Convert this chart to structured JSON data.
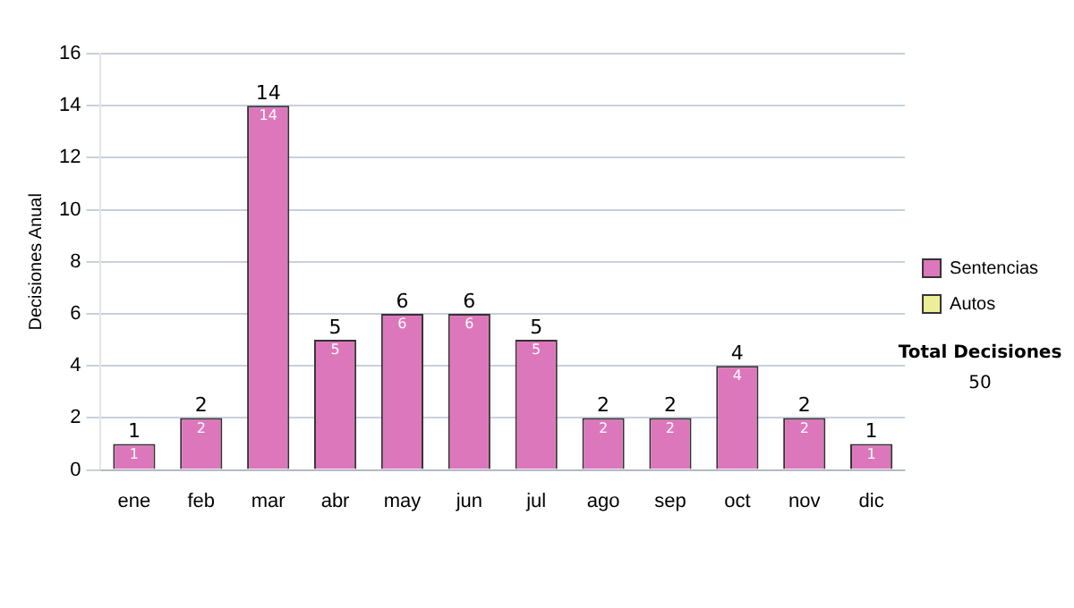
{
  "chart_data": {
    "type": "bar",
    "ylabel": "Decisiones Anual",
    "categories": [
      "ene",
      "feb",
      "mar",
      "abr",
      "may",
      "jun",
      "jul",
      "ago",
      "sep",
      "oct",
      "nov",
      "dic"
    ],
    "series": [
      {
        "name": "Sentencias",
        "color": "#dd77bb",
        "values": [
          1,
          2,
          14,
          5,
          6,
          6,
          5,
          2,
          2,
          4,
          2,
          1
        ],
        "value_labels": [
          "1",
          "2",
          "14",
          "5",
          "6",
          "6",
          "5",
          "2",
          "2",
          "4",
          "2",
          "1"
        ]
      },
      {
        "name": "Autos",
        "color": "#eeee99",
        "values": [
          0,
          0,
          0,
          0,
          0,
          0,
          0,
          0,
          0,
          0,
          0,
          0
        ],
        "value_labels": [
          null,
          null,
          null,
          null,
          null,
          null,
          null,
          null,
          null,
          null,
          null,
          null
        ]
      }
    ],
    "stacked": true,
    "totals": [
      "1",
      "2",
      "14",
      "5",
      "6",
      "6",
      "5",
      "2",
      "2",
      "4",
      "2",
      "1"
    ],
    "ylim": [
      0,
      16
    ],
    "yticks": [
      0,
      2,
      4,
      6,
      8,
      10,
      12,
      14,
      16
    ],
    "grid": "y",
    "legend": "right",
    "annotations": [
      "Total Decisiones",
      "50"
    ]
  }
}
